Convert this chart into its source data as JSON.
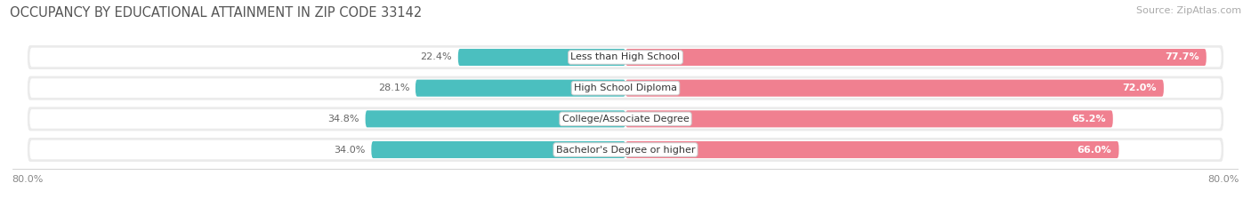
{
  "title": "OCCUPANCY BY EDUCATIONAL ATTAINMENT IN ZIP CODE 33142",
  "source": "Source: ZipAtlas.com",
  "categories": [
    "Less than High School",
    "High School Diploma",
    "College/Associate Degree",
    "Bachelor's Degree or higher"
  ],
  "owner_values": [
    22.4,
    28.1,
    34.8,
    34.0
  ],
  "renter_values": [
    77.7,
    72.0,
    65.2,
    66.0
  ],
  "owner_color": "#4bbfbf",
  "renter_color": "#f08090",
  "row_bg_color": "#ebebeb",
  "axis_max": 80.0,
  "title_fontsize": 10.5,
  "source_fontsize": 8,
  "value_fontsize": 8,
  "category_fontsize": 8,
  "tick_fontsize": 8,
  "bar_height": 0.55
}
